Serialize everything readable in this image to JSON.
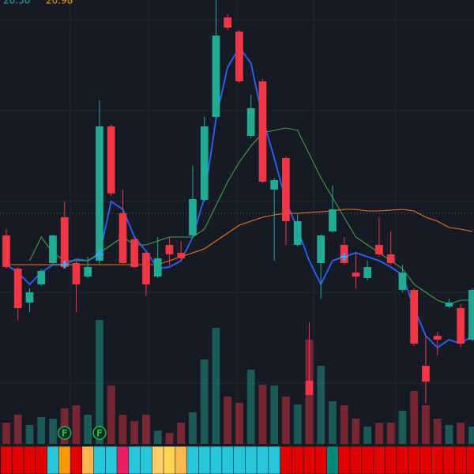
{
  "chart_data": {
    "type": "candlestick",
    "legend_values": [
      {
        "text": "20.50",
        "color": "#22ab94"
      },
      {
        "text": "20.98",
        "color": "#ff9800"
      }
    ],
    "categories": [
      null,
      null,
      null,
      null,
      null,
      null,
      null,
      null,
      null,
      null,
      null,
      null,
      null,
      null,
      null,
      null,
      null,
      null,
      null,
      null,
      null,
      null,
      null,
      null,
      null,
      null,
      null,
      null,
      null,
      null,
      null,
      null,
      null,
      null,
      null,
      null,
      null,
      null,
      null,
      null,
      null
    ],
    "open": [
      30.2,
      26.0,
      21.7,
      24.0,
      26.7,
      32.5,
      26.7,
      25.0,
      27.0,
      44.0,
      33.0,
      29.7,
      28.0,
      25.0,
      29.0,
      28.0,
      30.2,
      34.7,
      45.2,
      57.8,
      56.0,
      42.8,
      49.7,
      36.0,
      40.0,
      29.0,
      11.8,
      26.7,
      30.7,
      29.0,
      25.5,
      24.8,
      29.0,
      27.8,
      23.3,
      23.3,
      13.7,
      17.5,
      21.2,
      21.0,
      17.0
    ],
    "high": [
      31.0,
      26.2,
      23.5,
      26.0,
      30.3,
      34.5,
      27.0,
      27.5,
      47.3,
      44.2,
      36.0,
      30.0,
      28.2,
      30.0,
      30.0,
      29.5,
      39.0,
      45.2,
      60.0,
      58.2,
      56.2,
      48.0,
      50.0,
      37.5,
      40.2,
      33.0,
      19.2,
      30.3,
      36.5,
      30.0,
      28.0,
      27.0,
      32.5,
      30.7,
      26.5,
      23.5,
      17.5,
      18.0,
      22.2,
      21.5,
      23.5
    ],
    "low": [
      26.0,
      19.5,
      20.5,
      23.8,
      26.5,
      26.0,
      20.5,
      24.8,
      26.5,
      35.2,
      26.5,
      26.0,
      22.5,
      24.8,
      26.4,
      27.0,
      30.0,
      34.5,
      45.0,
      56.2,
      49.5,
      42.5,
      36.8,
      27.0,
      29.0,
      28.8,
      10.0,
      22.2,
      30.5,
      26.5,
      23.5,
      24.5,
      27.5,
      26.5,
      23.0,
      16.2,
      9.0,
      15.0,
      21.0,
      16.0,
      16.8
    ],
    "close": [
      26.2,
      21.0,
      23.0,
      25.7,
      30.2,
      26.2,
      24.0,
      26.2,
      44.0,
      35.5,
      26.7,
      26.2,
      24.0,
      27.3,
      27.8,
      27.3,
      34.8,
      44.0,
      55.5,
      56.5,
      49.7,
      46.3,
      37.0,
      37.2,
      32.0,
      32.0,
      10.0,
      30.2,
      33.5,
      26.7,
      25.0,
      26.2,
      27.8,
      26.7,
      25.5,
      16.5,
      11.7,
      17.0,
      21.7,
      16.5,
      23.3
    ],
    "volume": [
      27,
      37,
      24,
      34,
      32,
      45,
      49,
      37,
      157,
      74,
      37,
      29,
      37,
      17,
      14,
      27,
      40,
      107,
      147,
      60,
      52,
      94,
      75,
      74,
      60,
      50,
      132,
      99,
      54,
      49,
      32,
      22,
      27,
      27,
      42,
      67,
      49,
      32,
      24,
      27,
      22
    ],
    "up_color": "#22ab94",
    "down_color": "#f23645",
    "series": [
      {
        "color": "#2962ff",
        "values": [
          26.5,
          25.5,
          24.0,
          25.5,
          26.5,
          26.5,
          27.2,
          27.0,
          27.8,
          34.5,
          33.5,
          30.0,
          28.2,
          26.0,
          26.2,
          27.0,
          30.0,
          35.0,
          45.0,
          51.5,
          54.0,
          52.0,
          45.0,
          40.0,
          34.5,
          31.0,
          27.0,
          24.0,
          27.0,
          27.5,
          28.0,
          27.5,
          27.0,
          26.2,
          25.2,
          21.0,
          17.5,
          16.0,
          17.0,
          16.5,
          17.5
        ]
      },
      {
        "color": "#43a047",
        "values": [
          null,
          null,
          27,
          30,
          28,
          27,
          27,
          27,
          28,
          29,
          30,
          29,
          29,
          29.5,
          30,
          30,
          30,
          31,
          34,
          37,
          39.5,
          41.5,
          43.2,
          43.5,
          43.8,
          43.5,
          40.5,
          37.5,
          35,
          32.5,
          30,
          29,
          28,
          27,
          26,
          24,
          23,
          22,
          21.5,
          22,
          22
        ]
      },
      {
        "color": "#e8731a",
        "values": [
          26.5,
          26.5,
          26.5,
          26.5,
          26.5,
          26.5,
          26.5,
          26.5,
          26.5,
          26.5,
          26.5,
          26.5,
          26.5,
          26.5,
          27.0,
          27.5,
          28.0,
          28.5,
          29.5,
          30.5,
          31.5,
          32.0,
          32.5,
          32.8,
          33.0,
          33.0,
          33.1,
          33.2,
          33.3,
          33.5,
          33.5,
          33.3,
          33.3,
          33.4,
          33.5,
          33.3,
          32.5,
          32.0,
          31.2,
          31.0,
          30.7
        ]
      }
    ],
    "strip_colors": [
      "#e00000",
      "#e00000",
      "#e00000",
      "#e00000",
      "#26c6da",
      "#ff9800",
      "#e00000",
      "#ffb74d",
      "#26c6da",
      "#26c6da",
      "#e91e63",
      "#26c6da",
      "#26c6da",
      "#ffcc66",
      "#ffd54f",
      "#ffb74d",
      "#26c6da",
      "#26c6da",
      "#26c6da",
      "#26c6da",
      "#26c6da",
      "#26c6da",
      "#26c6da",
      "#26c6da",
      "#e00000",
      "#e00000",
      "#e00000",
      "#e00000",
      "#00897b",
      "#e00000",
      "#e00000",
      "#e00000",
      "#e00000",
      "#e00000",
      "#e00000",
      "#e00000",
      "#e00000",
      "#e00000",
      "#e00000",
      "#e00000",
      "#e00000"
    ],
    "flag_markers": [
      {
        "index": 5,
        "label": "F"
      },
      {
        "index": 8,
        "label": "F"
      }
    ],
    "cross_markers": [
      5,
      8,
      29
    ],
    "price_line": 33.0,
    "xlim": [
      -0.54,
      40.14
    ],
    "ylim": [
      0,
      60
    ],
    "vlim": [
      0,
      562
    ],
    "yticks": [
      11.5,
      23,
      34.5,
      46,
      57.5
    ],
    "xticks": [
      5.5,
      12.2,
      19.8,
      26.4,
      33.4
    ],
    "grid": true
  }
}
